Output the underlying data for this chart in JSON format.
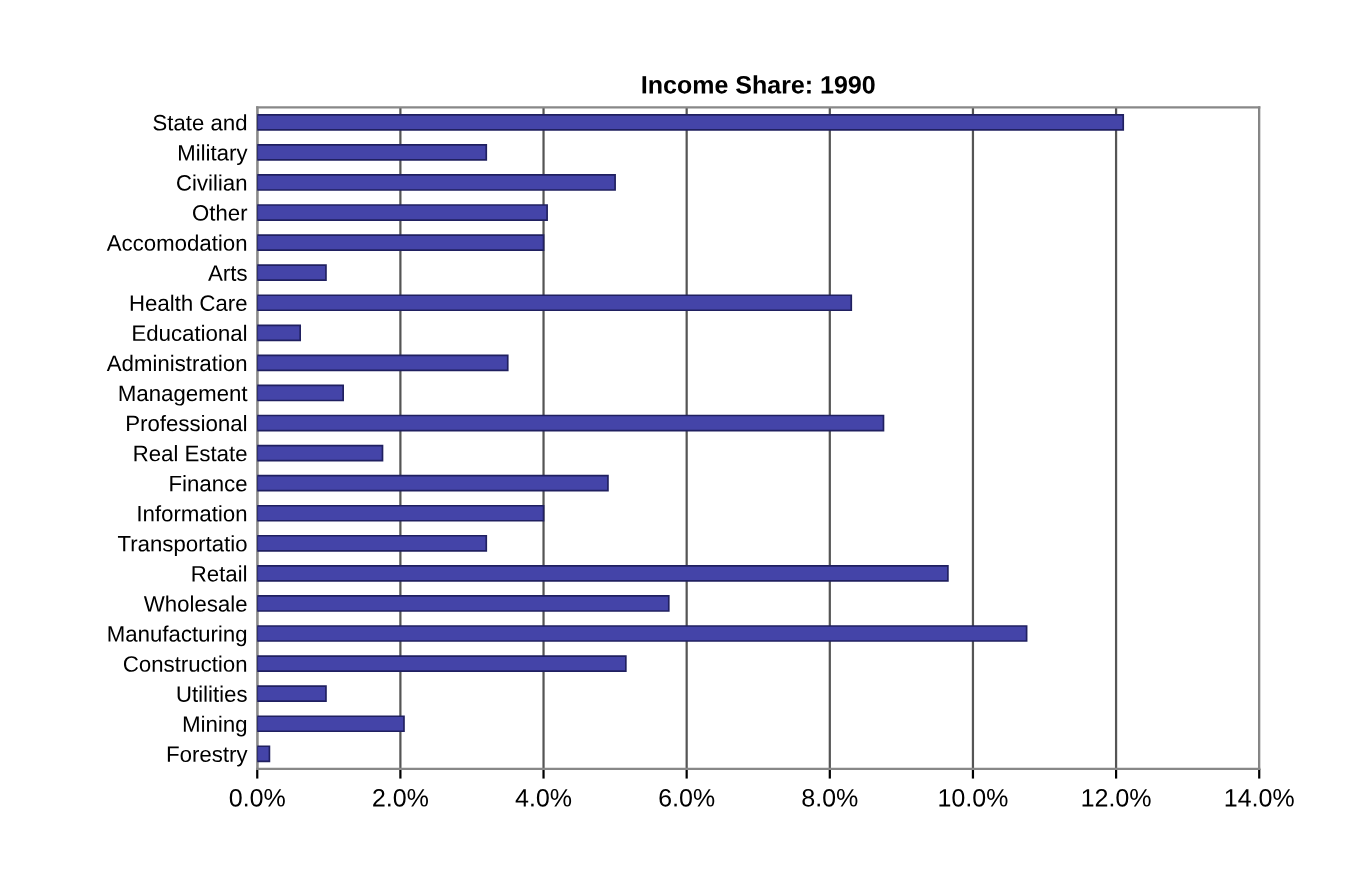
{
  "chart_data": {
    "type": "bar",
    "orientation": "horizontal",
    "title": "Income Share: 1990",
    "categories": [
      "State and",
      "Military",
      "Civilian",
      "Other",
      "Accomodation",
      "Arts",
      "Health Care",
      "Educational",
      "Administration",
      "Management",
      "Professional",
      "Real Estate",
      "Finance",
      "Information",
      "Transportatio",
      "Retail",
      "Wholesale",
      "Manufacturing",
      "Construction",
      "Utilities",
      "Mining",
      "Forestry"
    ],
    "values": [
      12.1,
      3.2,
      5.0,
      4.05,
      4.0,
      0.96,
      8.3,
      0.6,
      3.5,
      1.2,
      8.75,
      1.75,
      4.9,
      4.0,
      3.2,
      9.65,
      5.75,
      10.75,
      5.15,
      0.96,
      2.05,
      0.17
    ],
    "color": "#4444a8",
    "xlim": [
      0,
      14
    ],
    "xticks": [
      {
        "value": 0,
        "label": "0.0%"
      },
      {
        "value": 2,
        "label": "2.0%"
      },
      {
        "value": 4,
        "label": "4.0%"
      },
      {
        "value": 6,
        "label": "6.0%"
      },
      {
        "value": 8,
        "label": "8.0%"
      },
      {
        "value": 10,
        "label": "10.0%"
      },
      {
        "value": 12,
        "label": "12.0%"
      },
      {
        "value": 14,
        "label": "14.0%"
      }
    ],
    "grid": "x",
    "legend": false
  }
}
